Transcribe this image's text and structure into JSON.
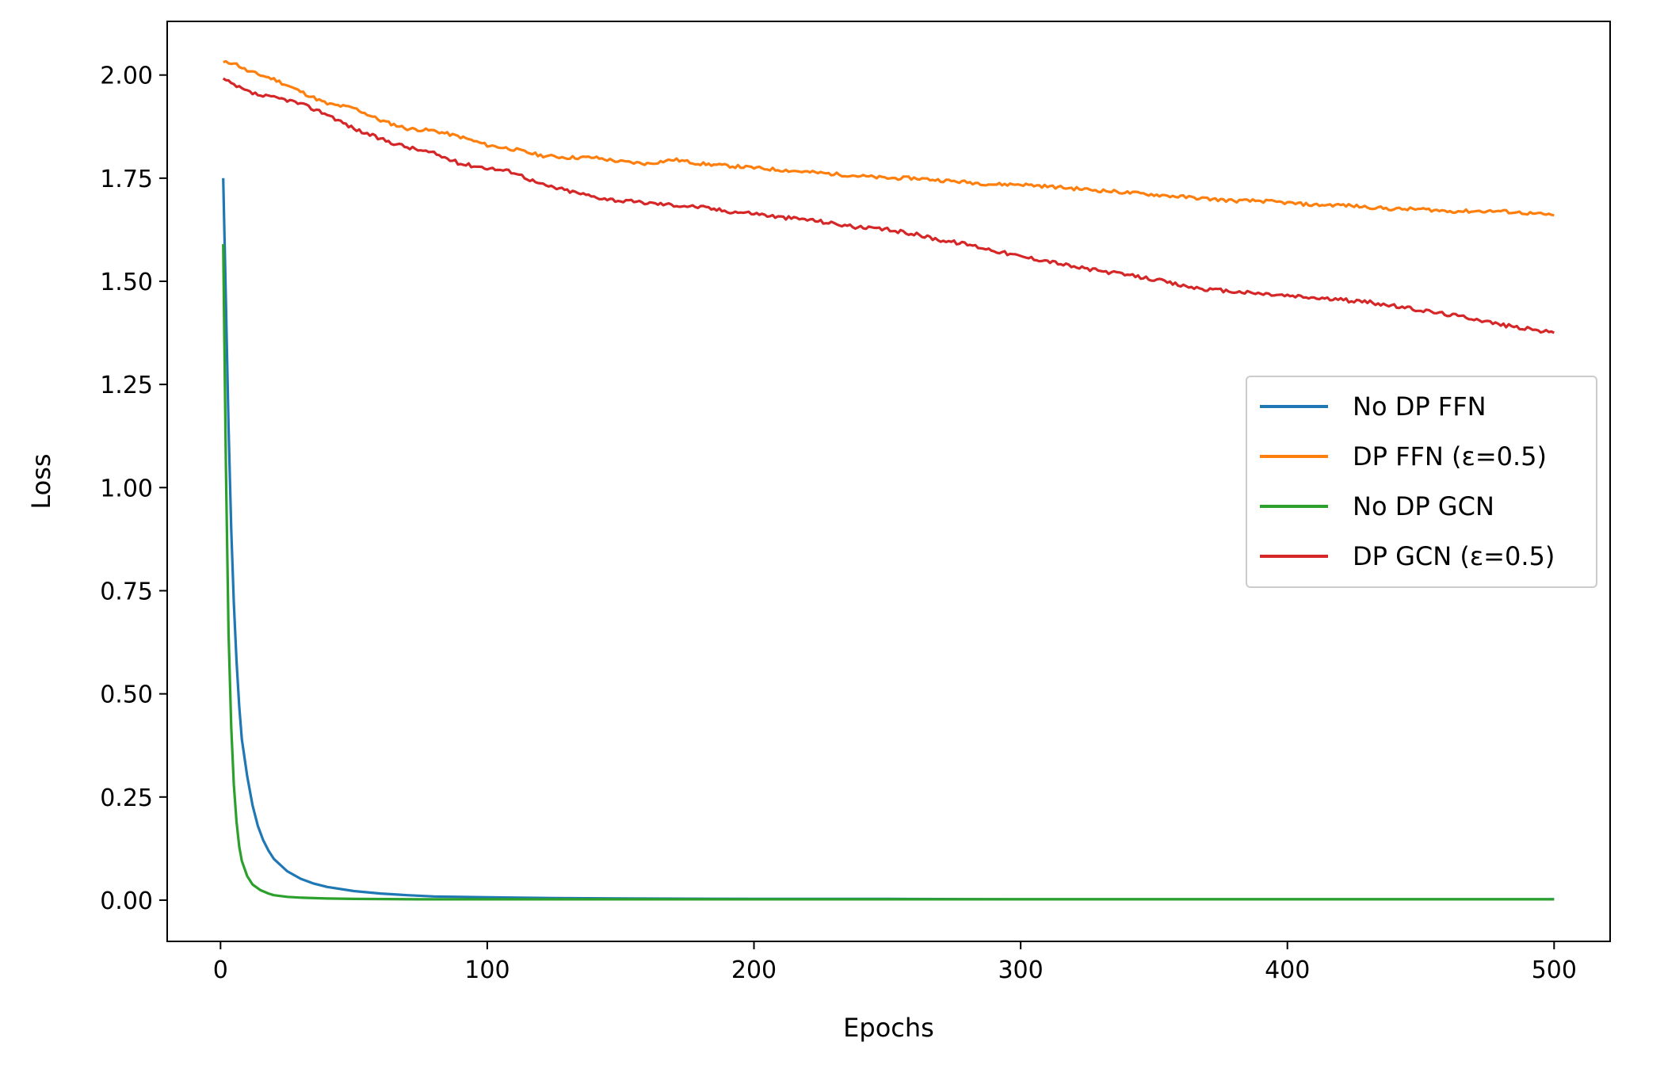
{
  "chart_data": {
    "type": "line",
    "title": "",
    "xlabel": "Epochs",
    "ylabel": "Loss",
    "xlim": [
      -20,
      521
    ],
    "ylim": [
      -0.1,
      2.13
    ],
    "xticks": [
      0,
      100,
      200,
      300,
      400,
      500
    ],
    "xtick_labels": [
      "0",
      "100",
      "200",
      "300",
      "400",
      "500"
    ],
    "yticks": [
      0.0,
      0.25,
      0.5,
      0.75,
      1.0,
      1.25,
      1.5,
      1.75,
      2.0
    ],
    "ytick_labels": [
      "0.00",
      "0.25",
      "0.50",
      "0.75",
      "1.00",
      "1.25",
      "1.50",
      "1.75",
      "2.00"
    ],
    "grid": false,
    "legend_position": "center-right",
    "series": [
      {
        "name": "No DP FFN",
        "color": "#1f77b4",
        "points": [
          [
            1,
            1.75
          ],
          [
            2,
            1.45
          ],
          [
            3,
            1.15
          ],
          [
            4,
            0.9
          ],
          [
            5,
            0.72
          ],
          [
            6,
            0.58
          ],
          [
            7,
            0.47
          ],
          [
            8,
            0.39
          ],
          [
            10,
            0.3
          ],
          [
            12,
            0.23
          ],
          [
            14,
            0.18
          ],
          [
            16,
            0.145
          ],
          [
            18,
            0.12
          ],
          [
            20,
            0.1
          ],
          [
            25,
            0.07
          ],
          [
            30,
            0.052
          ],
          [
            35,
            0.04
          ],
          [
            40,
            0.032
          ],
          [
            50,
            0.022
          ],
          [
            60,
            0.016
          ],
          [
            70,
            0.012
          ],
          [
            80,
            0.009
          ],
          [
            100,
            0.007
          ],
          [
            125,
            0.005
          ],
          [
            150,
            0.004
          ],
          [
            200,
            0.003
          ],
          [
            250,
            0.003
          ],
          [
            300,
            0.002
          ],
          [
            350,
            0.002
          ],
          [
            400,
            0.002
          ],
          [
            450,
            0.002
          ],
          [
            500,
            0.002
          ]
        ]
      },
      {
        "name": "DP FFN (ε=0.5)",
        "color": "#ff7f0e",
        "points": [
          [
            1,
            2.03
          ],
          [
            5,
            2.03
          ],
          [
            10,
            2.01
          ],
          [
            20,
            1.99
          ],
          [
            30,
            1.96
          ],
          [
            40,
            1.93
          ],
          [
            50,
            1.92
          ],
          [
            60,
            1.89
          ],
          [
            70,
            1.87
          ],
          [
            80,
            1.865
          ],
          [
            90,
            1.85
          ],
          [
            100,
            1.83
          ],
          [
            110,
            1.82
          ],
          [
            120,
            1.805
          ],
          [
            130,
            1.8
          ],
          [
            140,
            1.8
          ],
          [
            150,
            1.79
          ],
          [
            160,
            1.785
          ],
          [
            170,
            1.795
          ],
          [
            180,
            1.785
          ],
          [
            190,
            1.78
          ],
          [
            200,
            1.775
          ],
          [
            210,
            1.77
          ],
          [
            220,
            1.765
          ],
          [
            230,
            1.76
          ],
          [
            240,
            1.755
          ],
          [
            250,
            1.75
          ],
          [
            260,
            1.75
          ],
          [
            270,
            1.745
          ],
          [
            280,
            1.74
          ],
          [
            290,
            1.735
          ],
          [
            300,
            1.735
          ],
          [
            310,
            1.73
          ],
          [
            320,
            1.725
          ],
          [
            330,
            1.72
          ],
          [
            340,
            1.715
          ],
          [
            350,
            1.71
          ],
          [
            360,
            1.705
          ],
          [
            370,
            1.7
          ],
          [
            380,
            1.695
          ],
          [
            390,
            1.695
          ],
          [
            400,
            1.69
          ],
          [
            410,
            1.685
          ],
          [
            420,
            1.685
          ],
          [
            430,
            1.68
          ],
          [
            440,
            1.675
          ],
          [
            450,
            1.675
          ],
          [
            460,
            1.67
          ],
          [
            470,
            1.67
          ],
          [
            480,
            1.67
          ],
          [
            490,
            1.665
          ],
          [
            500,
            1.66
          ]
        ]
      },
      {
        "name": "No DP GCN",
        "color": "#2ca02c",
        "points": [
          [
            1,
            1.59
          ],
          [
            2,
            1.05
          ],
          [
            3,
            0.65
          ],
          [
            4,
            0.42
          ],
          [
            5,
            0.28
          ],
          [
            6,
            0.19
          ],
          [
            7,
            0.13
          ],
          [
            8,
            0.095
          ],
          [
            10,
            0.058
          ],
          [
            12,
            0.038
          ],
          [
            15,
            0.024
          ],
          [
            18,
            0.016
          ],
          [
            20,
            0.012
          ],
          [
            25,
            0.008
          ],
          [
            30,
            0.006
          ],
          [
            40,
            0.004
          ],
          [
            50,
            0.003
          ],
          [
            75,
            0.002
          ],
          [
            100,
            0.002
          ],
          [
            150,
            0.002
          ],
          [
            200,
            0.002
          ],
          [
            250,
            0.002
          ],
          [
            300,
            0.002
          ],
          [
            350,
            0.002
          ],
          [
            400,
            0.002
          ],
          [
            450,
            0.002
          ],
          [
            500,
            0.002
          ]
        ]
      },
      {
        "name": "DP GCN (ε=0.5)",
        "color": "#d62728",
        "points": [
          [
            1,
            1.99
          ],
          [
            5,
            1.975
          ],
          [
            10,
            1.96
          ],
          [
            15,
            1.95
          ],
          [
            20,
            1.945
          ],
          [
            25,
            1.94
          ],
          [
            30,
            1.93
          ],
          [
            40,
            1.905
          ],
          [
            50,
            1.87
          ],
          [
            60,
            1.845
          ],
          [
            70,
            1.825
          ],
          [
            80,
            1.81
          ],
          [
            90,
            1.785
          ],
          [
            100,
            1.775
          ],
          [
            110,
            1.765
          ],
          [
            120,
            1.735
          ],
          [
            130,
            1.72
          ],
          [
            140,
            1.705
          ],
          [
            150,
            1.695
          ],
          [
            160,
            1.69
          ],
          [
            170,
            1.685
          ],
          [
            180,
            1.68
          ],
          [
            190,
            1.67
          ],
          [
            200,
            1.665
          ],
          [
            210,
            1.655
          ],
          [
            220,
            1.65
          ],
          [
            230,
            1.64
          ],
          [
            240,
            1.63
          ],
          [
            250,
            1.625
          ],
          [
            260,
            1.615
          ],
          [
            270,
            1.6
          ],
          [
            280,
            1.59
          ],
          [
            290,
            1.575
          ],
          [
            300,
            1.56
          ],
          [
            310,
            1.55
          ],
          [
            320,
            1.535
          ],
          [
            330,
            1.525
          ],
          [
            340,
            1.515
          ],
          [
            350,
            1.505
          ],
          [
            360,
            1.49
          ],
          [
            370,
            1.48
          ],
          [
            380,
            1.475
          ],
          [
            390,
            1.47
          ],
          [
            400,
            1.465
          ],
          [
            410,
            1.46
          ],
          [
            420,
            1.455
          ],
          [
            430,
            1.45
          ],
          [
            440,
            1.44
          ],
          [
            450,
            1.43
          ],
          [
            460,
            1.42
          ],
          [
            470,
            1.41
          ],
          [
            480,
            1.395
          ],
          [
            490,
            1.385
          ],
          [
            500,
            1.375
          ]
        ]
      }
    ]
  }
}
